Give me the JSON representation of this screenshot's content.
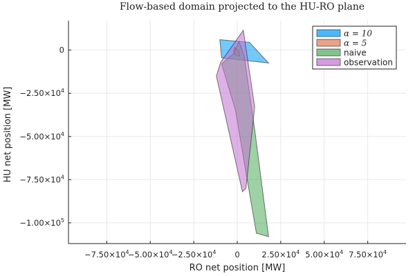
{
  "chart_data": {
    "type": "area",
    "title": "Flow-based domain projected to the HU-RO plane",
    "xlabel": "RO net position [MW]",
    "ylabel": "HU net position [MW]",
    "xlim": [
      -97000,
      97000
    ],
    "ylim": [
      -112000,
      17000
    ],
    "grid": true,
    "legend_position": "top-right",
    "x_ticks": [
      {
        "value": -75000,
        "mantissa": "−7.50×10",
        "exp": "4"
      },
      {
        "value": -50000,
        "mantissa": "−5.00×10",
        "exp": "4"
      },
      {
        "value": -25000,
        "mantissa": "−2.50×10",
        "exp": "4"
      },
      {
        "value": 0,
        "mantissa": "0",
        "exp": ""
      },
      {
        "value": 25000,
        "mantissa": "2.50×10",
        "exp": "4"
      },
      {
        "value": 50000,
        "mantissa": "5.00×10",
        "exp": "4"
      },
      {
        "value": 75000,
        "mantissa": "7.50×10",
        "exp": "4"
      }
    ],
    "y_ticks": [
      {
        "value": 0,
        "mantissa": "0",
        "exp": ""
      },
      {
        "value": -25000,
        "mantissa": "−2.50×10",
        "exp": "4"
      },
      {
        "value": -50000,
        "mantissa": "−5.00×10",
        "exp": "4"
      },
      {
        "value": -75000,
        "mantissa": "−7.50×10",
        "exp": "4"
      },
      {
        "value": -100000,
        "mantissa": "−1.00×10",
        "exp": "5"
      }
    ],
    "series": [
      {
        "name": "α = 10",
        "math": true,
        "color": "#009AFA",
        "opacity": 0.55,
        "polygon": [
          [
            -10000,
            6000
          ],
          [
            7000,
            4500
          ],
          [
            18000,
            -7500
          ],
          [
            -9000,
            -4500
          ]
        ]
      },
      {
        "name": "α = 5",
        "math": true,
        "color": "#E26F46",
        "opacity": 0.5,
        "polygon": [
          [
            -1500,
            1500
          ],
          [
            1000,
            -500
          ],
          [
            1500,
            -3500
          ],
          [
            -1000,
            -3000
          ],
          [
            -2000,
            -1000
          ]
        ]
      },
      {
        "name": "naive",
        "math": false,
        "color": "#3DA44E",
        "opacity": 0.5,
        "polygon": [
          [
            -2000,
            -2000
          ],
          [
            1000,
            5000
          ],
          [
            4000,
            -3500
          ],
          [
            10000,
            -46000
          ],
          [
            18000,
            -108000
          ],
          [
            11000,
            -106000
          ],
          [
            4000,
            -65000
          ],
          [
            -1000,
            -35000
          ],
          [
            -9000,
            -8000
          ]
        ]
      },
      {
        "name": "observation",
        "math": false,
        "color": "#C271D2",
        "opacity": 0.55,
        "polygon": [
          [
            3500,
            11500
          ],
          [
            10000,
            -33000
          ],
          [
            5000,
            -80000
          ],
          [
            3000,
            -82000
          ],
          [
            -12000,
            -15000
          ],
          [
            -9500,
            -7000
          ]
        ]
      }
    ]
  }
}
